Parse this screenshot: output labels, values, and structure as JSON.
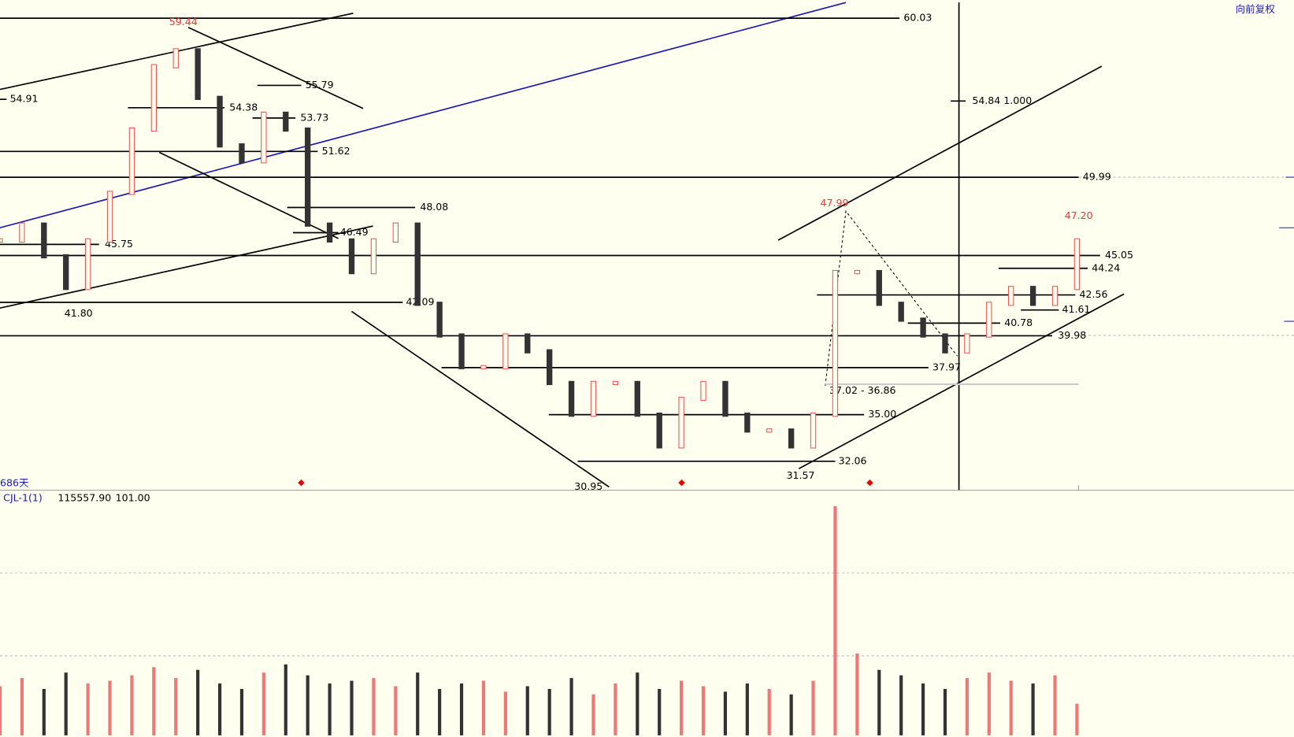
{
  "toolbar": {
    "restore": "向前复权"
  },
  "price_chart": {
    "ylim": [
      30.23,
      61.18
    ],
    "levels": [
      "60.03",
      "55.79",
      "54.91",
      "54.38",
      "53.73",
      "51.62",
      "49.99",
      "48.08",
      "46.49",
      "45.75",
      "45.05",
      "44.24",
      "42.56",
      "42.09",
      "41.61",
      "40.78",
      "39.98",
      "37.97",
      "35.00",
      "32.06"
    ],
    "low_labels": [
      "41.80",
      "31.57",
      "30.95"
    ],
    "high_labels": [
      "59.44",
      "47.99",
      "47.20"
    ],
    "fib_label": "54.84 1.000",
    "range_label": "37.02 - 36.86",
    "days_label": "686天",
    "closes": [
      46,
      47,
      45,
      43,
      46,
      49,
      53,
      57,
      58,
      55,
      52,
      51,
      54,
      53,
      47,
      46,
      44,
      46,
      47,
      42,
      40,
      38,
      38,
      40,
      39,
      37,
      35,
      37,
      37,
      35,
      33,
      36,
      37,
      35,
      34,
      34,
      33,
      35,
      44,
      44,
      42,
      41,
      40,
      39,
      40,
      42,
      43,
      42,
      43,
      46
    ]
  },
  "volume_panel": {
    "indicator": "CJL-1(1)",
    "value": "115557.90",
    "ratio": "101.00",
    "ylim": [
      0,
      880000
    ],
    "volumes": [
      180000,
      210000,
      170000,
      230000,
      190000,
      200000,
      220000,
      250000,
      210000,
      240000,
      190000,
      170000,
      230000,
      260000,
      220000,
      190000,
      200000,
      210000,
      180000,
      230000,
      170000,
      190000,
      200000,
      160000,
      180000,
      170000,
      210000,
      150000,
      190000,
      230000,
      170000,
      200000,
      180000,
      160000,
      190000,
      170000,
      150000,
      200000,
      840000,
      300000,
      240000,
      220000,
      190000,
      170000,
      210000,
      230000,
      200000,
      190000,
      220000,
      115557.9
    ]
  }
}
